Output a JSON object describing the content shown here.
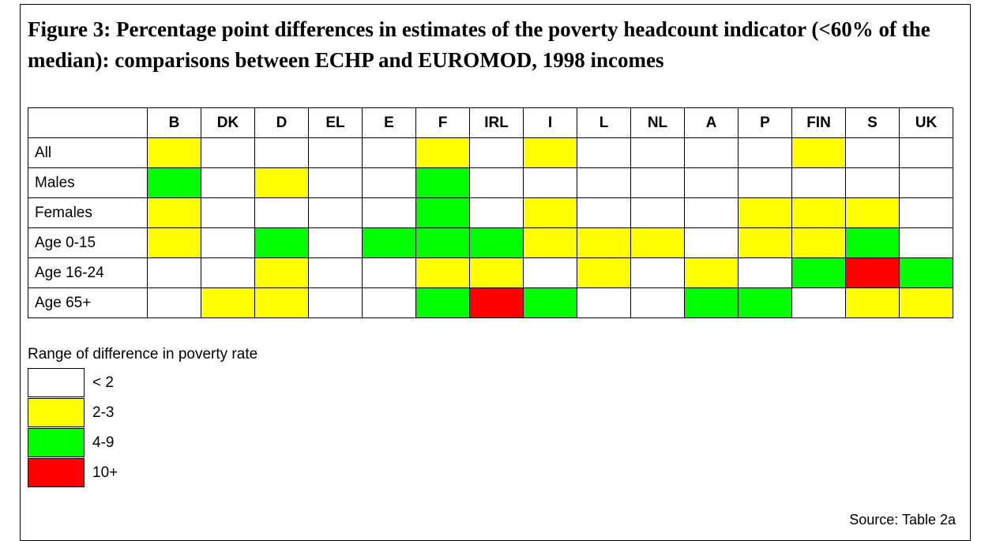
{
  "title": "Figure 3: Percentage point differences in estimates of the poverty headcount indicator (<60% of the median): comparisons between ECHP and EUROMOD, 1998 incomes",
  "table": {
    "columns": [
      "B",
      "DK",
      "D",
      "EL",
      "E",
      "F",
      "IRL",
      "I",
      "L",
      "NL",
      "A",
      "P",
      "FIN",
      "S",
      "UK"
    ],
    "rows": [
      {
        "label": "All",
        "cells": [
          "#ffff00",
          "#ffffff",
          "#ffffff",
          "#ffffff",
          "#ffffff",
          "#ffff00",
          "#ffffff",
          "#ffff00",
          "#ffffff",
          "#ffffff",
          "#ffffff",
          "#ffffff",
          "#ffff00",
          "#ffffff",
          "#ffffff"
        ]
      },
      {
        "label": "Males",
        "cells": [
          "#00ff00",
          "#ffffff",
          "#ffff00",
          "#ffffff",
          "#ffffff",
          "#00ff00",
          "#ffffff",
          "#ffffff",
          "#ffffff",
          "#ffffff",
          "#ffffff",
          "#ffffff",
          "#ffffff",
          "#ffffff",
          "#ffffff"
        ]
      },
      {
        "label": "Females",
        "cells": [
          "#ffff00",
          "#ffffff",
          "#ffffff",
          "#ffffff",
          "#ffffff",
          "#00ff00",
          "#ffffff",
          "#ffff00",
          "#ffffff",
          "#ffffff",
          "#ffffff",
          "#ffff00",
          "#ffff00",
          "#ffff00",
          "#ffffff"
        ]
      },
      {
        "label": "Age 0-15",
        "cells": [
          "#ffff00",
          "#ffffff",
          "#00ff00",
          "#ffffff",
          "#00ff00",
          "#00ff00",
          "#00ff00",
          "#ffff00",
          "#ffff00",
          "#ffff00",
          "#ffffff",
          "#ffff00",
          "#ffff00",
          "#00ff00",
          "#ffffff"
        ]
      },
      {
        "label": "Age 16-24",
        "cells": [
          "#ffffff",
          "#ffffff",
          "#ffff00",
          "#ffffff",
          "#ffffff",
          "#ffff00",
          "#ffff00",
          "#ffffff",
          "#ffff00",
          "#ffffff",
          "#ffff00",
          "#ffffff",
          "#00ff00",
          "#ff0000",
          "#00ff00"
        ]
      },
      {
        "label": "Age 65+",
        "cells": [
          "#ffffff",
          "#ffff00",
          "#ffff00",
          "#ffffff",
          "#ffffff",
          "#00ff00",
          "#ff0000",
          "#00ff00",
          "#ffffff",
          "#ffffff",
          "#00ff00",
          "#00ff00",
          "#ffffff",
          "#ffff00",
          "#ffff00"
        ]
      }
    ]
  },
  "legend": {
    "title": "Range of difference in poverty rate",
    "items": [
      {
        "label": "< 2",
        "color": "#ffffff"
      },
      {
        "label": "2-3",
        "color": "#ffff00"
      },
      {
        "label": "4-9",
        "color": "#00ff00"
      },
      {
        "label": "10+",
        "color": "#ff0000"
      }
    ]
  },
  "source": "Source: Table 2a"
}
